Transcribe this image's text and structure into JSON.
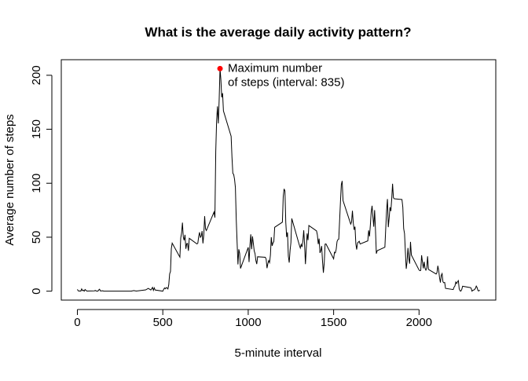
{
  "chart_data": {
    "type": "line",
    "title": "What is the average daily activity pattern?",
    "x_label": "5-minute interval",
    "y_label": "Average number of steps",
    "x": [
      0,
      5,
      10,
      15,
      20,
      25,
      30,
      35,
      40,
      45,
      50,
      55,
      100,
      105,
      110,
      115,
      120,
      125,
      130,
      135,
      140,
      145,
      150,
      155,
      200,
      215,
      230,
      245,
      300,
      315,
      330,
      345,
      400,
      415,
      430,
      440,
      445,
      450,
      455,
      500,
      505,
      510,
      515,
      520,
      525,
      530,
      535,
      540,
      545,
      550,
      555,
      600,
      605,
      610,
      615,
      620,
      625,
      630,
      635,
      640,
      645,
      650,
      655,
      700,
      705,
      710,
      715,
      720,
      725,
      730,
      735,
      740,
      745,
      750,
      755,
      800,
      805,
      810,
      815,
      820,
      825,
      830,
      835,
      840,
      845,
      850,
      855,
      900,
      905,
      910,
      915,
      920,
      925,
      930,
      935,
      940,
      945,
      950,
      955,
      1000,
      1005,
      1010,
      1015,
      1020,
      1025,
      1030,
      1035,
      1040,
      1045,
      1050,
      1055,
      1100,
      1105,
      1110,
      1115,
      1120,
      1125,
      1130,
      1135,
      1140,
      1145,
      1150,
      1155,
      1200,
      1205,
      1210,
      1215,
      1220,
      1225,
      1230,
      1235,
      1240,
      1245,
      1250,
      1255,
      1300,
      1305,
      1310,
      1315,
      1320,
      1325,
      1330,
      1335,
      1340,
      1345,
      1350,
      1355,
      1400,
      1405,
      1410,
      1415,
      1420,
      1425,
      1430,
      1435,
      1440,
      1445,
      1450,
      1455,
      1500,
      1505,
      1510,
      1515,
      1520,
      1525,
      1530,
      1535,
      1540,
      1545,
      1550,
      1555,
      1600,
      1605,
      1610,
      1615,
      1620,
      1625,
      1630,
      1635,
      1640,
      1645,
      1650,
      1655,
      1700,
      1705,
      1710,
      1715,
      1720,
      1725,
      1730,
      1735,
      1740,
      1745,
      1750,
      1755,
      1800,
      1805,
      1810,
      1815,
      1820,
      1825,
      1830,
      1835,
      1840,
      1845,
      1850,
      1855,
      1900,
      1905,
      1910,
      1915,
      1920,
      1925,
      1930,
      1935,
      1940,
      1945,
      1950,
      1955,
      2000,
      2005,
      2010,
      2015,
      2020,
      2025,
      2030,
      2035,
      2040,
      2045,
      2050,
      2055,
      2100,
      2105,
      2110,
      2115,
      2120,
      2125,
      2130,
      2135,
      2140,
      2145,
      2150,
      2155,
      2200,
      2205,
      2210,
      2215,
      2220,
      2225,
      2230,
      2235,
      2240,
      2245,
      2250,
      2255,
      2300,
      2305,
      2310,
      2315,
      2320,
      2325,
      2330,
      2335,
      2340,
      2345,
      2350,
      2355
    ],
    "series": [
      {
        "color": "#000000",
        "values": [
          1.7,
          0.3,
          0.1,
          0.2,
          0.1,
          2.1,
          0.5,
          0.9,
          0,
          1.5,
          0.8,
          0.1,
          0.3,
          0.7,
          0.2,
          0,
          0,
          1.1,
          1.8,
          0.2,
          0.2,
          0.4,
          0.3,
          0,
          0,
          0,
          0,
          0,
          0,
          0,
          0.6,
          0.1,
          1.2,
          2.6,
          1.1,
          3.5,
          0.8,
          3.1,
          1.1,
          0,
          1.6,
          3,
          2.2,
          3.3,
          3,
          2.1,
          6.1,
          16,
          18.3,
          39.5,
          44.5,
          31.5,
          49.3,
          53.8,
          63.5,
          50,
          47.1,
          52.2,
          39.3,
          44,
          44.2,
          37.4,
          49,
          43.8,
          44.4,
          50.5,
          54.5,
          49.9,
          51,
          55.7,
          44.3,
          52.3,
          69.5,
          57.8,
          56.2,
          73.4,
          68.2,
          129.4,
          157.5,
          171.2,
          155.4,
          177.3,
          206.17,
          195.9,
          179.6,
          183.4,
          167,
          143.5,
          124,
          109.1,
          108.1,
          103.7,
          96,
          66.2,
          45.2,
          24.8,
          38.8,
          35,
          21.1,
          40.6,
          27,
          42.4,
          52.7,
          38.9,
          50.8,
          44.3,
          37.4,
          34.7,
          28.3,
          25.1,
          31.9,
          31.4,
          29.7,
          21.3,
          25.5,
          28.4,
          26.5,
          33.4,
          50,
          42,
          44.6,
          46,
          59.2,
          63.9,
          87.7,
          94.8,
          92.8,
          63.4,
          50.2,
          54.5,
          32.4,
          26.5,
          37.7,
          45.1,
          67.3,
          42.3,
          39.9,
          43.3,
          41,
          46.2,
          56.4,
          42.8,
          25.1,
          40,
          53.5,
          47.3,
          60.8,
          55.8,
          52,
          43.6,
          48.7,
          35.5,
          37.5,
          41.8,
          27.5,
          17.1,
          26.1,
          43.6,
          43.8,
          30,
          36.1,
          35.5,
          38.8,
          46,
          47.8,
          48.1,
          65.3,
          82.9,
          98.7,
          102.1,
          84,
          62.1,
          64.1,
          74.5,
          63.2,
          56.9,
          59.8,
          43.9,
          38.6,
          44.7,
          45.5,
          46.2,
          43.7,
          46.6,
          56.3,
          50.7,
          61.2,
          73.4,
          79.1,
          68.9,
          59.7,
          75.1,
          56.5,
          34.8,
          37.5,
          40.7,
          58,
          74.7,
          85.3,
          59.3,
          67.8,
          77.7,
          74.2,
          85.3,
          99.5,
          86.6,
          85.6,
          84.9,
          77.8,
          58,
          53.4,
          36.3,
          20.7,
          27.4,
          40,
          30.2,
          25.5,
          45.7,
          33.5,
          19.6,
          19,
          19.3,
          33.3,
          26.8,
          21.2,
          27.3,
          21.3,
          19.5,
          21.3,
          32.3,
          20.2,
          15.9,
          17.2,
          23.5,
          19.2,
          12.5,
          8,
          14.7,
          16.3,
          8.7,
          7.8,
          8.1,
          2.6,
          1.5,
          3.7,
          4.8,
          8.5,
          7.1,
          8.7,
          9.8,
          2.2,
          0.3,
          0.1,
          1.6,
          4.6,
          3.3,
          2.8,
          0,
          0.8,
          1,
          1.6,
          2.6,
          4.7,
          3.3,
          0.6,
          0.2,
          1.1
        ]
      }
    ],
    "highlight": {
      "x": 835,
      "y": 206.17,
      "color": "#ff0000",
      "label": [
        "Maximum number",
        "of steps (interval: 835)"
      ]
    },
    "xlim": [
      -94.2,
      2449.2
    ],
    "ylim": [
      -8.25,
      214.42
    ],
    "xticks": [
      0,
      500,
      1000,
      1500,
      2000
    ],
    "yticks": [
      0,
      50,
      100,
      150,
      200
    ]
  }
}
